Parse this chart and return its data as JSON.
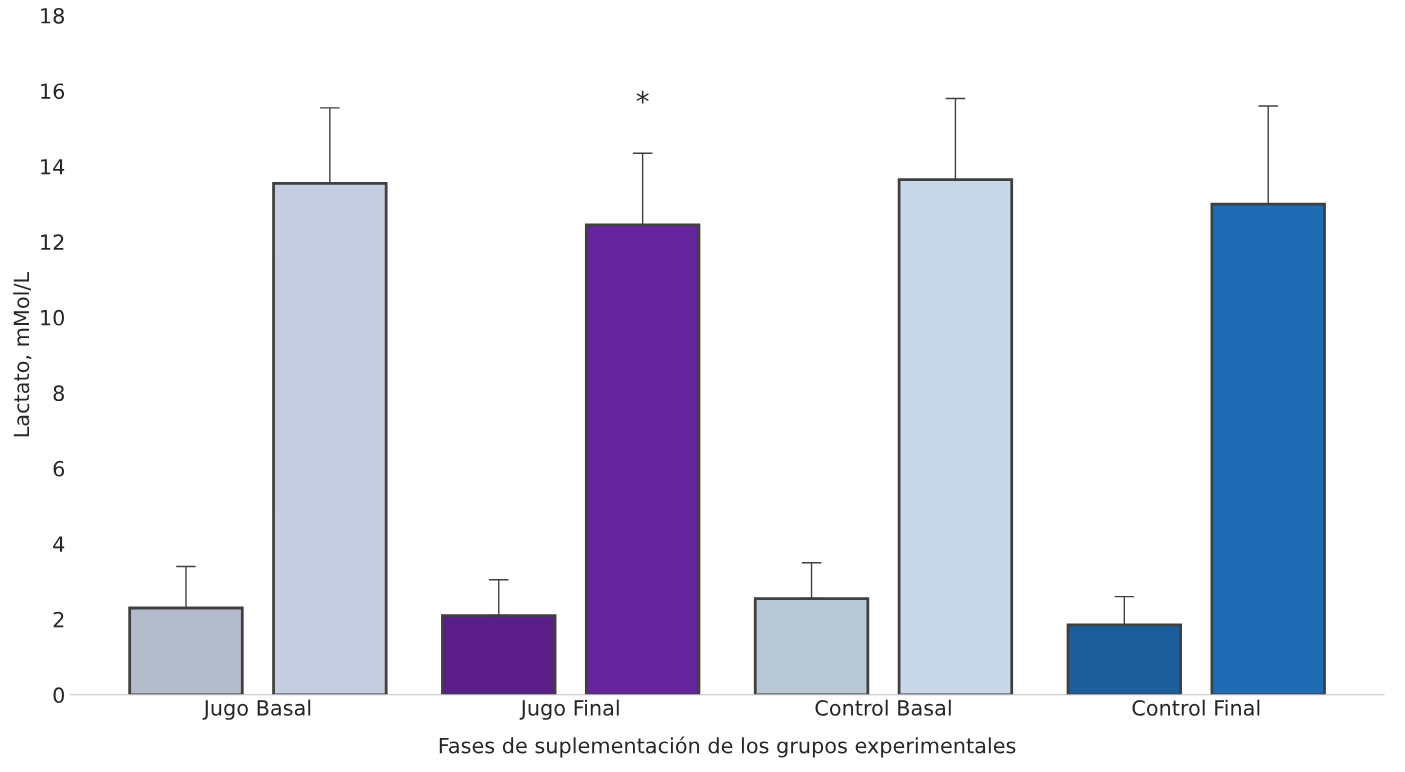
{
  "chart_data": {
    "type": "bar",
    "xlabel": "Fases de suplementación de los grupos experimentales",
    "ylabel": "Lactato, mMol/L",
    "categories": [
      "Jugo Basal",
      "Jugo Final",
      "Control Basal",
      "Control Final"
    ],
    "series": [
      {
        "colors": [
          "#b4bccc",
          "#5a1e88",
          "#b8c8d6",
          "#1c5e9c"
        ],
        "values": [
          2.3,
          2.1,
          2.55,
          1.85
        ],
        "errors": [
          [
            2.3,
            3.4
          ],
          [
            2.1,
            3.05
          ],
          [
            2.55,
            3.5
          ],
          [
            1.85,
            2.6
          ]
        ]
      },
      {
        "colors": [
          "#c4cee0",
          "#64249c",
          "#c8d8e8",
          "#1f6cb4"
        ],
        "values": [
          13.55,
          12.45,
          13.65,
          13.0
        ],
        "errors": [
          [
            13.55,
            15.55
          ],
          [
            12.45,
            14.35
          ],
          [
            13.65,
            15.8
          ],
          [
            13.0,
            15.6
          ]
        ]
      }
    ],
    "ylim": [
      0,
      18
    ],
    "yticks": [
      0,
      2,
      4,
      6,
      8,
      10,
      12,
      14,
      16,
      18
    ],
    "grid": false,
    "legend": false,
    "annotations": [
      "*"
    ]
  }
}
